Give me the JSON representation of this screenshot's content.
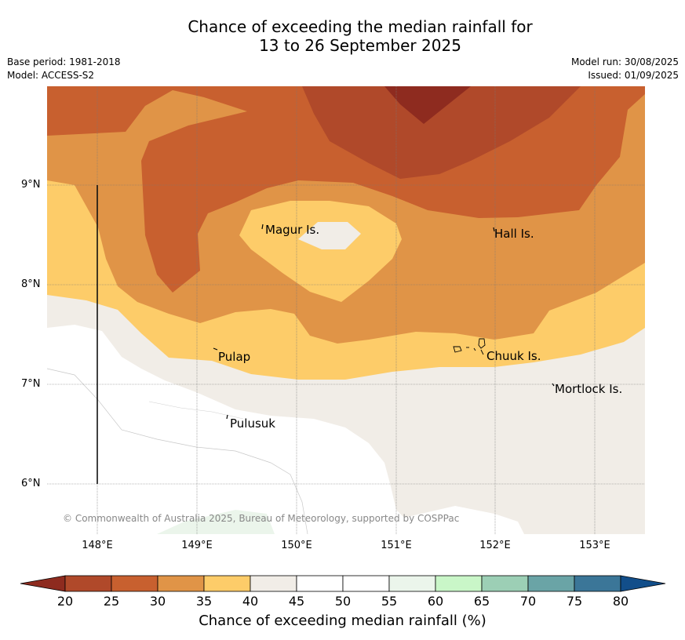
{
  "title_line1": "Chance of exceeding the median rainfall for",
  "title_line2": "13 to 26 September 2025",
  "meta": {
    "base_period": "Base period: 1981-2018",
    "model": "Model: ACCESS-S2",
    "model_run": "Model run: 30/08/2025",
    "issued": "Issued: 01/09/2025"
  },
  "axes": {
    "latitudes": [
      "9°N",
      "8°N",
      "7°N",
      "6°N"
    ],
    "longitudes": [
      "148°E",
      "149°E",
      "150°E",
      "151°E",
      "152°E",
      "153°E"
    ]
  },
  "places": {
    "magur": "Magur Is.",
    "hall": "Hall Is.",
    "pulap": "Pulap",
    "chuuk": "Chuuk Is.",
    "mortlock": "Mortlock Is.",
    "pulusuk": "Pulusuk"
  },
  "copyright": "© Commonwealth of Australia 2025, Bureau of Meteorology, supported by COSPPac",
  "colorbar": {
    "title": "Chance of exceeding median rainfall (%)",
    "ticks": [
      "20",
      "25",
      "30",
      "35",
      "40",
      "45",
      "50",
      "55",
      "60",
      "65",
      "70",
      "75",
      "80"
    ],
    "colors": [
      "#b0492a",
      "#c8602f",
      "#e09447",
      "#fdcc69",
      "#f1ede7",
      "#ffffff",
      "#ffffff",
      "#ebf5eb",
      "#c9f6c8",
      "#9ccfb5",
      "#6aa4a6",
      "#3b7698"
    ],
    "under_color": "#8e2b1f",
    "over_color": "#124e8a"
  }
}
